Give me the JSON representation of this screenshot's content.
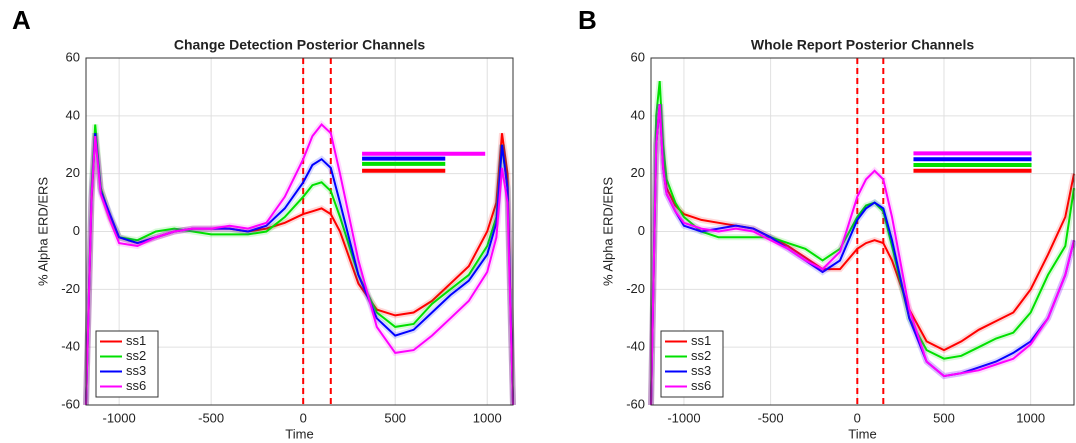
{
  "chart_data": [
    {
      "type": "line",
      "panel": "A",
      "title": "Change Detection Posterior Channels",
      "x_label": "Time",
      "y_label": "% Alpha ERD/ERS",
      "x": [
        -1180,
        -1150,
        -1130,
        -1100,
        -1050,
        -1000,
        -900,
        -800,
        -700,
        -600,
        -500,
        -400,
        -300,
        -200,
        -100,
        0,
        50,
        100,
        150,
        200,
        300,
        400,
        500,
        600,
        700,
        800,
        900,
        1000,
        1050,
        1080,
        1110,
        1140
      ],
      "series": [
        {
          "name": "ss1",
          "color": "#ff0000",
          "values": [
            -60,
            10,
            34,
            15,
            5,
            -2,
            -4,
            -2,
            0,
            1,
            1,
            1,
            0,
            1,
            3,
            6,
            7,
            8,
            6,
            0,
            -18,
            -27,
            -29,
            -28,
            -24,
            -18,
            -12,
            0,
            10,
            34,
            20,
            -60
          ],
          "sig": [
            320,
            772
          ],
          "sig_y": 21
        },
        {
          "name": "ss2",
          "color": "#00e000",
          "values": [
            -60,
            15,
            37,
            15,
            5,
            -2,
            -3,
            0,
            1,
            0,
            -1,
            -1,
            -1,
            0,
            5,
            12,
            16,
            17,
            14,
            5,
            -15,
            -28,
            -33,
            -32,
            -25,
            -20,
            -15,
            -5,
            5,
            30,
            15,
            -60
          ],
          "sig": [
            320,
            772
          ],
          "sig_y": 23.4
        },
        {
          "name": "ss3",
          "color": "#0000ff",
          "values": [
            -60,
            12,
            34,
            14,
            6,
            -2,
            -4,
            -2,
            0,
            1,
            1,
            1,
            0,
            2,
            8,
            17,
            23,
            25,
            22,
            10,
            -15,
            -30,
            -36,
            -34,
            -28,
            -22,
            -17,
            -8,
            3,
            30,
            15,
            -60
          ],
          "sig": [
            320,
            772
          ],
          "sig_y": 25.2
        },
        {
          "name": "ss6",
          "color": "#ff00ff",
          "values": [
            -60,
            12,
            33,
            13,
            4,
            -4,
            -5,
            -2,
            0,
            1,
            1,
            2,
            1,
            3,
            12,
            25,
            33,
            37,
            34,
            20,
            -10,
            -33,
            -42,
            -41,
            -36,
            -30,
            -24,
            -14,
            -2,
            22,
            10,
            -60
          ],
          "sig": [
            320,
            989
          ],
          "sig_y": 26.9
        }
      ],
      "vlines": [
        0,
        150
      ],
      "xlim": [
        -1180,
        1140
      ],
      "ylim": [
        -60,
        60
      ],
      "xticks": [
        -1000,
        -500,
        0,
        500,
        1000
      ],
      "yticks": [
        -60,
        -40,
        -20,
        0,
        20,
        40,
        60
      ],
      "grid": true,
      "legend": "lower left"
    },
    {
      "type": "line",
      "panel": "B",
      "title": "Whole Report Posterior Channels",
      "x_label": "Time",
      "y_label": "% Alpha ERD/ERS",
      "x": [
        -1190,
        -1160,
        -1140,
        -1120,
        -1100,
        -1050,
        -1000,
        -900,
        -800,
        -700,
        -600,
        -500,
        -400,
        -300,
        -200,
        -100,
        0,
        50,
        100,
        150,
        200,
        300,
        400,
        500,
        600,
        700,
        800,
        900,
        1000,
        1100,
        1200,
        1250
      ],
      "series": [
        {
          "name": "ss1",
          "color": "#ff0000",
          "values": [
            -60,
            30,
            44,
            25,
            15,
            9,
            6,
            4,
            3,
            2,
            1,
            -2,
            -5,
            -9,
            -13,
            -13,
            -6,
            -4,
            -3,
            -4,
            -10,
            -27,
            -38,
            -41,
            -38,
            -34,
            -31,
            -28,
            -20,
            -8,
            5,
            20
          ],
          "sig": [
            324,
            1005
          ],
          "sig_y": 21
        },
        {
          "name": "ss2",
          "color": "#00e000",
          "values": [
            -60,
            40,
            52,
            30,
            18,
            10,
            5,
            0,
            -2,
            -2,
            -2,
            -2,
            -4,
            -6,
            -10,
            -6,
            5,
            9,
            10,
            7,
            -5,
            -30,
            -41,
            -44,
            -43,
            -40,
            -37,
            -35,
            -28,
            -15,
            -5,
            15
          ],
          "sig": [
            324,
            1005
          ],
          "sig_y": 23
        },
        {
          "name": "ss3",
          "color": "#0000ff",
          "values": [
            -60,
            30,
            44,
            22,
            13,
            7,
            2,
            0,
            1,
            2,
            1,
            -2,
            -6,
            -10,
            -14,
            -10,
            4,
            8,
            10,
            8,
            -3,
            -30,
            -45,
            -50,
            -49,
            -47,
            -45,
            -42,
            -38,
            -30,
            -15,
            -3
          ],
          "sig": [
            324,
            1005
          ],
          "sig_y": 25
        },
        {
          "name": "ss6",
          "color": "#ff00ff",
          "values": [
            -60,
            30,
            44,
            22,
            13,
            7,
            3,
            1,
            0,
            1,
            0,
            -3,
            -6,
            -10,
            -13,
            -7,
            12,
            18,
            21,
            18,
            5,
            -27,
            -45,
            -50,
            -49,
            -48,
            -46,
            -44,
            -39,
            -30,
            -15,
            -3
          ],
          "sig": [
            324,
            1005
          ],
          "sig_y": 27
        }
      ],
      "vlines": [
        0,
        150
      ],
      "xlim": [
        -1190,
        1250
      ],
      "ylim": [
        -60,
        60
      ],
      "xticks": [
        -1000,
        -500,
        0,
        500,
        1000
      ],
      "yticks": [
        -60,
        -40,
        -20,
        0,
        20,
        40,
        60
      ],
      "grid": true,
      "legend": "lower left"
    }
  ]
}
